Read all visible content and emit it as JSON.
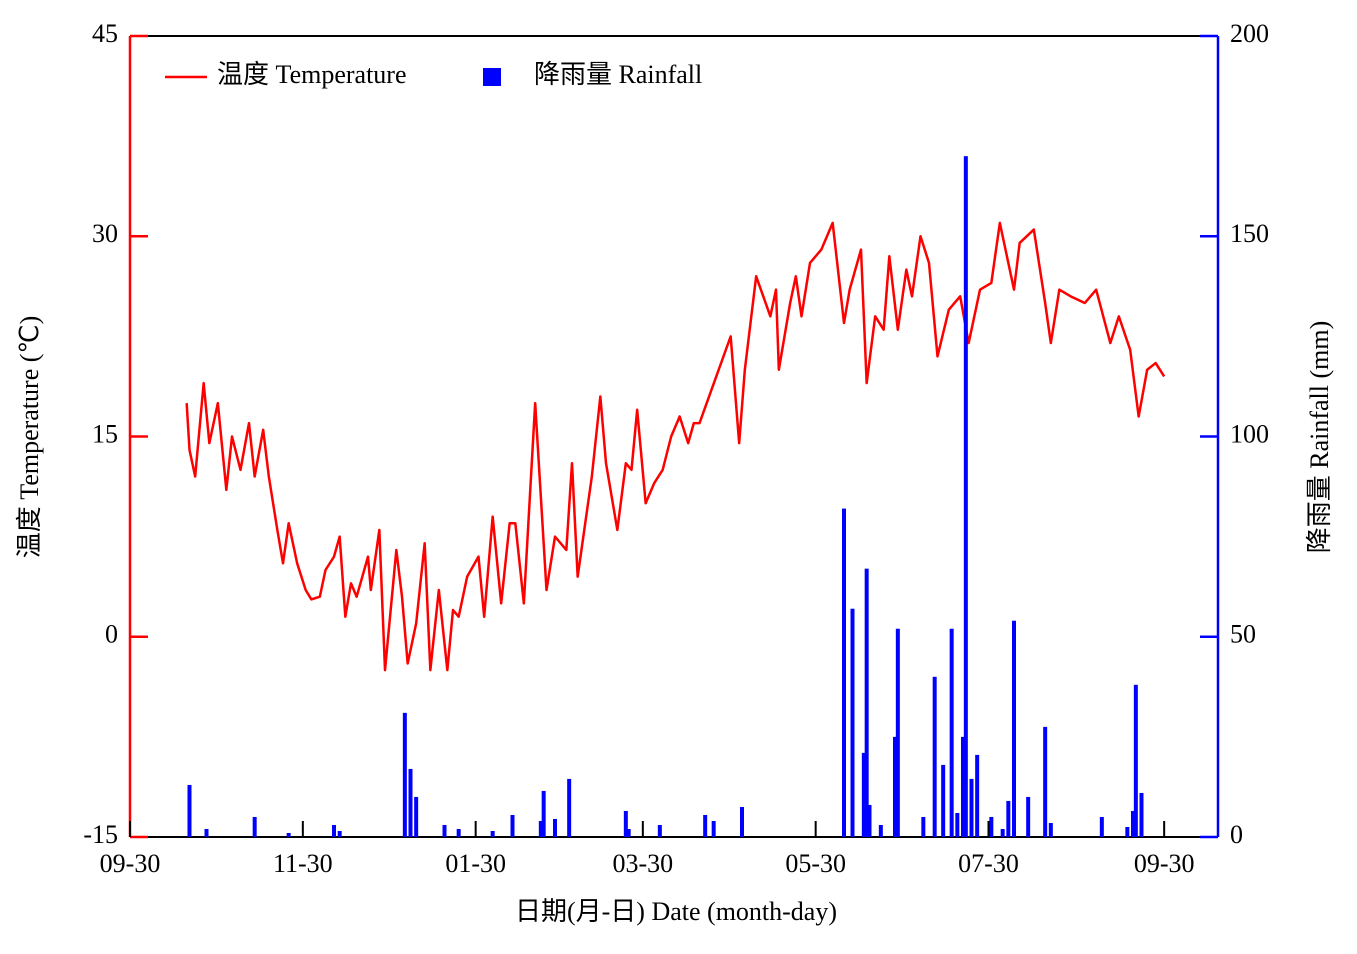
{
  "chart_data": {
    "type": "combo",
    "xlabel": "日期(月-日)  Date (month-day)",
    "ylabel": "温度 Temperature (℃)",
    "y2label": "降雨量 Rainfall (mm)",
    "xlim": [
      0,
      384
    ],
    "xticks": [
      {
        "value": 0,
        "label": "09-30"
      },
      {
        "value": 61,
        "label": "11-30"
      },
      {
        "value": 122,
        "label": "01-30"
      },
      {
        "value": 181,
        "label": "03-30"
      },
      {
        "value": 242,
        "label": "05-30"
      },
      {
        "value": 303,
        "label": "07-30"
      },
      {
        "value": 365,
        "label": "09-30"
      }
    ],
    "ylim": [
      -15,
      45
    ],
    "yticks": [
      -15,
      0,
      15,
      30,
      45
    ],
    "y2lim": [
      0,
      200
    ],
    "y2ticks": [
      0,
      50,
      100,
      150,
      200
    ],
    "legend": "top-left",
    "series": [
      {
        "name": "温度 Temperature",
        "type": "line",
        "color": "#ff0000",
        "x": [
          20,
          21,
          23,
          26,
          28,
          31,
          34,
          36,
          39,
          42,
          44,
          47,
          49,
          52,
          54,
          56,
          59,
          62,
          64,
          67,
          69,
          72,
          74,
          76,
          78,
          80,
          84,
          85,
          88,
          90,
          94,
          96,
          98,
          101,
          104,
          106,
          109,
          112,
          114,
          116,
          119,
          123,
          125,
          128,
          131,
          134,
          136,
          139,
          143,
          147,
          150,
          154,
          156,
          158,
          161,
          163,
          166,
          168,
          172,
          175,
          177,
          179,
          182,
          185,
          188,
          191,
          194,
          197,
          199,
          201,
          212,
          215,
          217,
          221,
          226,
          228,
          229,
          233,
          235,
          237,
          240,
          244,
          248,
          252,
          254,
          258,
          260,
          263,
          266,
          268,
          271,
          274,
          276,
          279,
          282,
          285,
          289,
          293,
          296,
          300,
          304,
          307,
          312,
          314,
          319,
          323,
          325,
          328,
          332,
          337,
          341,
          346,
          349,
          353,
          356,
          359,
          362,
          365
        ],
        "values": [
          17.5,
          14,
          12,
          19,
          14.5,
          17.5,
          11,
          15,
          12.5,
          16,
          12,
          15.5,
          12,
          8,
          5.5,
          8.5,
          5.5,
          3.5,
          2.8,
          3,
          5,
          6,
          7.5,
          1.5,
          4,
          3,
          6,
          3.5,
          8,
          -2.5,
          6.5,
          3,
          -2,
          1,
          7,
          -2.5,
          3.5,
          -2.5,
          2,
          1.5,
          4.5,
          6,
          1.5,
          9,
          2.5,
          8.5,
          8.5,
          2.5,
          17.5,
          3.5,
          7.5,
          6.5,
          13,
          4.5,
          9,
          12,
          18,
          13,
          8,
          13,
          12.5,
          17,
          10,
          11.5,
          12.5,
          15,
          16.5,
          14.5,
          16,
          16,
          22.5,
          14.5,
          20,
          27,
          24,
          26,
          20,
          25,
          27,
          24,
          28,
          29,
          31,
          23.5,
          26,
          29,
          19,
          24,
          23,
          28.5,
          23,
          27.5,
          25.5,
          30,
          28,
          21,
          24.5,
          25.5,
          22,
          26,
          26.5,
          31,
          26,
          29.5,
          30.5,
          25,
          22,
          26,
          25.5,
          25,
          26,
          22,
          24,
          21.5,
          16.5,
          20,
          20.5,
          19.5
        ]
      },
      {
        "name": "降雨量 Rainfall",
        "type": "bar",
        "axis": "y2",
        "color": "#0000ff",
        "x": [
          21,
          27,
          44,
          56,
          72,
          74,
          97,
          99,
          101,
          111,
          116,
          128,
          135,
          145,
          146,
          150,
          155,
          175,
          176,
          187,
          203,
          206,
          216,
          252,
          255,
          259,
          260,
          261,
          265,
          270,
          271,
          280,
          284,
          287,
          290,
          292,
          294,
          295,
          297,
          299,
          304,
          308,
          310,
          312,
          317,
          323,
          325,
          343,
          352,
          354,
          355,
          357
        ],
        "values": [
          13,
          2,
          5,
          1,
          3,
          1.5,
          31,
          17,
          10,
          3,
          2,
          1.5,
          5.5,
          4,
          11.5,
          4.5,
          14.5,
          6.5,
          2,
          3,
          5.5,
          4,
          7.5,
          82,
          57,
          21,
          67,
          8,
          3,
          25,
          52,
          5,
          40,
          18,
          52,
          6,
          25,
          170,
          14.5,
          20.5,
          5,
          2,
          9,
          54,
          10,
          27.5,
          3.5,
          5,
          2.5,
          6.5,
          38,
          11
        ]
      }
    ]
  }
}
